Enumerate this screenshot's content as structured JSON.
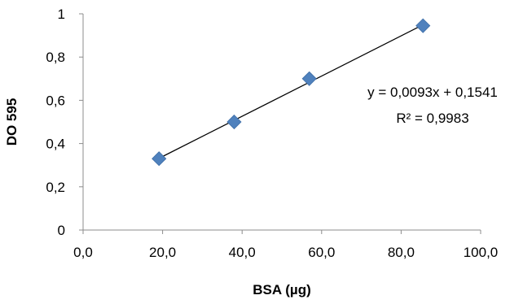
{
  "chart_data": {
    "type": "scatter",
    "title": "",
    "xlabel": "BSA (µg)",
    "ylabel": "DO 595",
    "xlim": [
      0,
      100
    ],
    "ylim": [
      0,
      1
    ],
    "x_ticks": [
      "0,0",
      "20,0",
      "40,0",
      "60,0",
      "80,0",
      "100,0"
    ],
    "x_tick_values": [
      0,
      20,
      40,
      60,
      80,
      100
    ],
    "y_ticks": [
      "0",
      "0,2",
      "0,4",
      "0,6",
      "0,8",
      "1"
    ],
    "y_tick_values": [
      0,
      0.2,
      0.4,
      0.6,
      0.8,
      1
    ],
    "grid": false,
    "legend": "none",
    "series": [
      {
        "marker": "diamond",
        "color": "#4f81bd",
        "x": [
          19.1,
          38.0,
          56.9,
          85.5
        ],
        "y": [
          0.33,
          0.5,
          0.7,
          0.945
        ]
      }
    ],
    "trendline": {
      "type": "linear",
      "slope": 0.0093,
      "intercept": 0.1541,
      "x_range": [
        19.1,
        85.5
      ],
      "equation": "y = 0,0093x + 0,1541",
      "r_squared": "R² = 0,9983",
      "color": "#000000"
    }
  }
}
